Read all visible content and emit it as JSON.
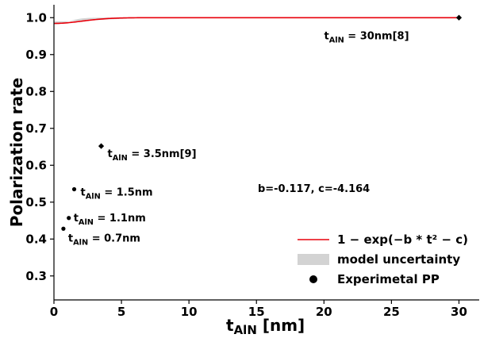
{
  "chart_data": {
    "type": "line",
    "xlabel_main": "t",
    "xlabel_sub": "AlN",
    "xlabel_unit": "  [nm]",
    "ylabel": "Polarization rate",
    "xlim": [
      0,
      31.5
    ],
    "ylim": [
      0.235,
      1.035
    ],
    "x_ticks": [
      0,
      5,
      10,
      15,
      20,
      25,
      30
    ],
    "y_ticks": [
      0.3,
      0.4,
      0.5,
      0.6,
      0.7,
      0.8,
      0.9,
      1.0
    ],
    "grid": false,
    "fit": {
      "b": -0.117,
      "c": -4.164
    },
    "fit_label": "b=-0.117, c=-4.164",
    "series": [
      {
        "name": "1 − exp(−b * t² − c)",
        "kind": "line",
        "color": "#e8000b"
      },
      {
        "name": "model uncertainty",
        "kind": "band",
        "color": "#d3d3d3"
      },
      {
        "name": "Experimetal PP",
        "kind": "scatter",
        "color": "#000000"
      }
    ],
    "points": [
      {
        "x": 0.7,
        "y": 0.428,
        "marker": "circle",
        "label_main": "t",
        "label_sub": "AlN",
        "label_rest": " = 0.7nm"
      },
      {
        "x": 1.1,
        "y": 0.457,
        "marker": "circle",
        "label_main": "t",
        "label_sub": "AlN",
        "label_rest": " = 1.1nm"
      },
      {
        "x": 1.5,
        "y": 0.535,
        "marker": "circle",
        "label_main": "t",
        "label_sub": "AlN",
        "label_rest": " = 1.5nm"
      },
      {
        "x": 3.5,
        "y": 0.652,
        "marker": "diamond",
        "label_main": "t",
        "label_sub": "AlN",
        "label_rest": " = 3.5nm[9]"
      },
      {
        "x": 30,
        "y": 1.0,
        "marker": "diamond",
        "label_main": "t",
        "label_sub": "AlN",
        "label_rest": " = 30nm[8]"
      }
    ],
    "legend_position": "lower-right"
  }
}
